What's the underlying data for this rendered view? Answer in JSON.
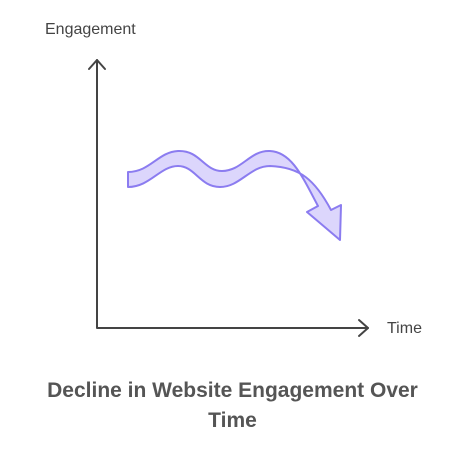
{
  "axes": {
    "y_label": "Engagement",
    "x_label": "Time"
  },
  "title": "Decline in Website Engagement Over Time"
}
